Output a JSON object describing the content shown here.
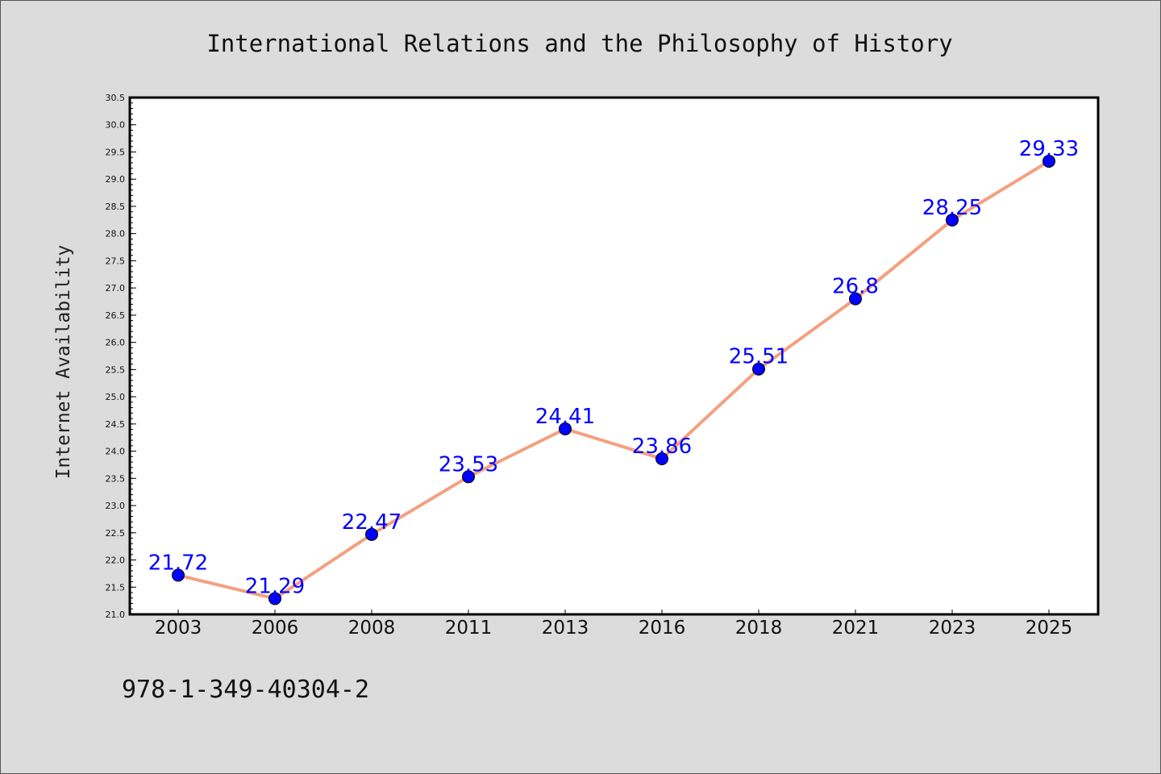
{
  "chart_data": {
    "type": "line",
    "title": "International Relations and the Philosophy of History",
    "xlabel": "",
    "ylabel": "Internet Availability",
    "categories": [
      "2003",
      "2006",
      "2008",
      "2011",
      "2013",
      "2016",
      "2018",
      "2021",
      "2023",
      "2025"
    ],
    "series": [
      {
        "values": [
          21.72,
          21.29,
          22.47,
          23.53,
          24.41,
          23.86,
          25.51,
          26.8,
          28.25,
          29.33
        ],
        "labels": [
          "21.72",
          "21.29",
          "22.47",
          "23.53",
          "24.41",
          "23.86",
          "25.51",
          "26.8",
          "28.25",
          "29.33"
        ],
        "line_color": "#f4a07f",
        "marker_color": "#0000ff"
      }
    ],
    "ylim": [
      21.0,
      30.5
    ],
    "yticks": [
      "21.0",
      "21.5",
      "22.0",
      "22.5",
      "23.0",
      "23.5",
      "24.0",
      "24.5",
      "25.0",
      "25.5",
      "26.0",
      "26.5",
      "27.0",
      "27.5",
      "28.0",
      "28.5",
      "29.0",
      "29.5",
      "30.0",
      "30.5"
    ],
    "grid": false,
    "legend": "none",
    "label_color": "#0000ff"
  },
  "footer": {
    "isbn": "978-1-349-40304-2"
  },
  "colors": {
    "background": "#dcdcdc",
    "plot_area": "#ffffff"
  }
}
